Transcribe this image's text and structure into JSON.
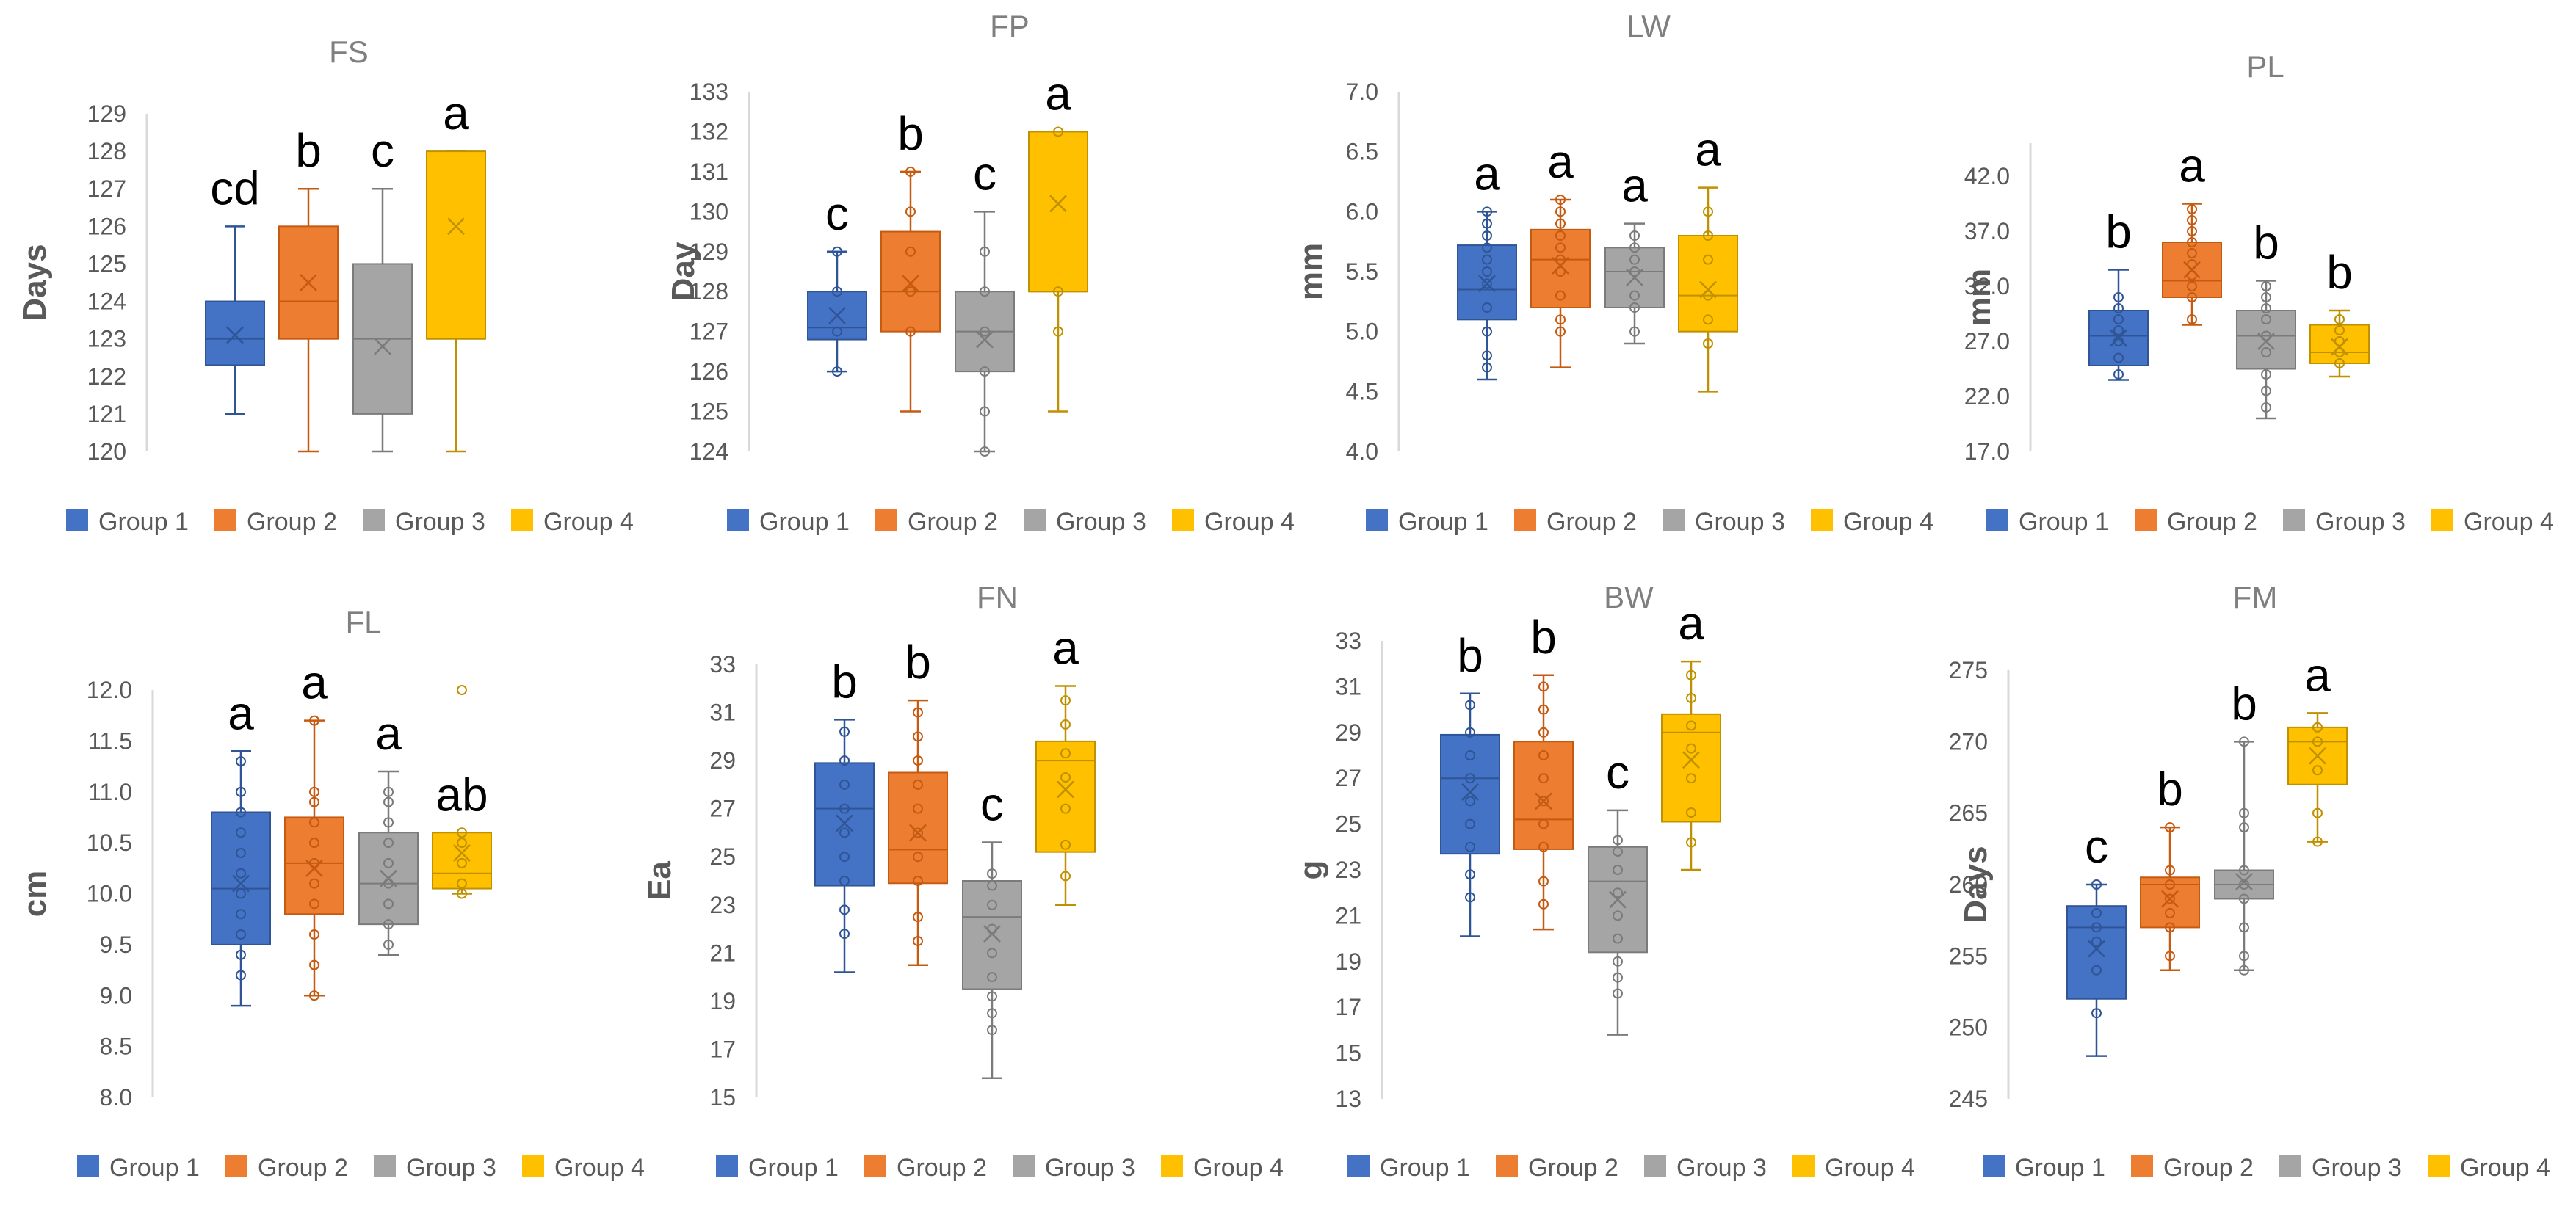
{
  "colors": {
    "group1": "#4472C4",
    "group1_dark": "#2F5597",
    "group2": "#ED7D31",
    "group2_dark": "#C55A11",
    "group3": "#A5A5A5",
    "group3_dark": "#7B7B7B",
    "group4": "#FFC000",
    "group4_dark": "#BF9000",
    "axis": "#D9D9D9",
    "tick_text": "#595959",
    "title_text": "#7F7F7F",
    "ylabel_text": "#595959"
  },
  "legend": [
    "Group 1",
    "Group 2",
    "Group 3",
    "Group 4"
  ],
  "chart_data": [
    {
      "type": "box",
      "title": "FS",
      "ylabel": "Days",
      "ylim": [
        120,
        129
      ],
      "ticks": [
        "120",
        "121",
        "122",
        "123",
        "124",
        "125",
        "126",
        "127",
        "128",
        "129"
      ],
      "series": [
        {
          "name": "Group 1",
          "min": 121,
          "q1": 122.3,
          "median": 123,
          "q3": 124,
          "max": 126,
          "mean": 123.1,
          "letter": "cd",
          "points": []
        },
        {
          "name": "Group 2",
          "min": 120,
          "q1": 123,
          "median": 124,
          "q3": 126,
          "max": 127,
          "mean": 124.5,
          "letter": "b",
          "points": []
        },
        {
          "name": "Group 3",
          "min": 120,
          "q1": 121,
          "median": 123,
          "q3": 125,
          "max": 127,
          "mean": 122.8,
          "letter": "c",
          "points": []
        },
        {
          "name": "Group 4",
          "min": 120,
          "q1": 123,
          "median": 123,
          "q3": 128,
          "max": 128,
          "mean": 126,
          "letter": "a",
          "points": []
        }
      ]
    },
    {
      "type": "box",
      "title": "FP",
      "ylabel": "Day",
      "ylim": [
        124,
        133
      ],
      "ticks": [
        "124",
        "125",
        "126",
        "127",
        "128",
        "129",
        "130",
        "131",
        "132",
        "133"
      ],
      "series": [
        {
          "name": "Group 1",
          "min": 126,
          "q1": 126.8,
          "median": 127.1,
          "q3": 128,
          "max": 129,
          "mean": 127.4,
          "letter": "c",
          "points": [
            126,
            127,
            128,
            129
          ]
        },
        {
          "name": "Group 2",
          "min": 125,
          "q1": 127,
          "median": 128,
          "q3": 129.5,
          "max": 131,
          "mean": 128.2,
          "letter": "b",
          "points": [
            127,
            128,
            129,
            130,
            131
          ]
        },
        {
          "name": "Group 3",
          "min": 124,
          "q1": 126,
          "median": 127,
          "q3": 128,
          "max": 130,
          "mean": 126.8,
          "letter": "c",
          "points": [
            124,
            125,
            126,
            127,
            128,
            129
          ]
        },
        {
          "name": "Group 4",
          "min": 125,
          "q1": 128,
          "median": 128,
          "q3": 132,
          "max": 132,
          "mean": 130.2,
          "letter": "a",
          "points": [
            127,
            128,
            132
          ]
        }
      ]
    },
    {
      "type": "box",
      "title": "LW",
      "ylabel": "mm",
      "ylim": [
        4.0,
        7.0
      ],
      "ticks": [
        "4.0",
        "4.5",
        "5.0",
        "5.5",
        "6.0",
        "6.5",
        "7.0"
      ],
      "series": [
        {
          "name": "Group 1",
          "min": 4.6,
          "q1": 5.1,
          "median": 5.35,
          "q3": 5.72,
          "max": 6.0,
          "mean": 5.4,
          "letter": "a",
          "points": [
            4.7,
            4.8,
            5.0,
            5.2,
            5.4,
            5.5,
            5.6,
            5.7,
            5.8,
            5.9,
            6.0
          ]
        },
        {
          "name": "Group 2",
          "min": 4.7,
          "q1": 5.2,
          "median": 5.6,
          "q3": 5.85,
          "max": 6.1,
          "mean": 5.55,
          "letter": "a",
          "points": [
            5.0,
            5.1,
            5.3,
            5.5,
            5.6,
            5.7,
            5.8,
            5.9,
            6.0,
            6.1
          ]
        },
        {
          "name": "Group 3",
          "min": 4.9,
          "q1": 5.2,
          "median": 5.5,
          "q3": 5.7,
          "max": 5.9,
          "mean": 5.45,
          "letter": "a",
          "points": [
            5.0,
            5.2,
            5.3,
            5.5,
            5.6,
            5.7,
            5.8
          ]
        },
        {
          "name": "Group 4",
          "min": 4.5,
          "q1": 5.0,
          "median": 5.3,
          "q3": 5.8,
          "max": 6.2,
          "mean": 5.35,
          "letter": "a",
          "points": [
            4.9,
            5.1,
            5.3,
            5.6,
            5.8,
            6.0
          ]
        }
      ]
    },
    {
      "type": "box",
      "title": "PL",
      "ylabel": "mm",
      "ylim": [
        17.0,
        45.0
      ],
      "ticks": [
        "17.0",
        "22.0",
        "27.0",
        "32.0",
        "37.0",
        "42.0"
      ],
      "series": [
        {
          "name": "Group 1",
          "min": 23.5,
          "q1": 24.8,
          "median": 27.5,
          "q3": 29.8,
          "max": 33.5,
          "mean": 27.3,
          "letter": "b",
          "points": [
            24.0,
            25.5,
            27.0,
            28.0,
            29.0,
            30.0,
            31.0
          ]
        },
        {
          "name": "Group 2",
          "min": 28.5,
          "q1": 31.0,
          "median": 32.5,
          "q3": 36.0,
          "max": 39.5,
          "mean": 33.5,
          "letter": "a",
          "points": [
            29.0,
            31.0,
            32.0,
            33.0,
            34.0,
            35.0,
            36.0,
            37.0,
            38.0,
            39.0
          ]
        },
        {
          "name": "Group 3",
          "min": 20.0,
          "q1": 24.5,
          "median": 27.5,
          "q3": 29.8,
          "max": 32.5,
          "mean": 27.0,
          "letter": "b",
          "points": [
            21.0,
            22.5,
            24.0,
            26.0,
            27.5,
            29.0,
            30.0,
            31.0,
            32.0
          ]
        },
        {
          "name": "Group 4",
          "min": 23.8,
          "q1": 25.0,
          "median": 26.0,
          "q3": 28.5,
          "max": 29.8,
          "mean": 26.5,
          "letter": "b",
          "points": [
            25.0,
            26.0,
            27.0,
            28.0,
            29.0
          ]
        }
      ]
    },
    {
      "type": "box",
      "title": "FL",
      "ylabel": "cm",
      "ylim": [
        8.0,
        12.0
      ],
      "ticks": [
        "8.0",
        "8.5",
        "9.0",
        "9.5",
        "10.0",
        "10.5",
        "11.0",
        "11.5",
        "12.0"
      ],
      "series": [
        {
          "name": "Group 1",
          "min": 8.9,
          "q1": 9.5,
          "median": 10.05,
          "q3": 10.8,
          "max": 11.4,
          "mean": 10.1,
          "letter": "a",
          "points": [
            9.2,
            9.4,
            9.6,
            9.8,
            10.0,
            10.2,
            10.4,
            10.6,
            10.8,
            11.0,
            11.3
          ]
        },
        {
          "name": "Group 2",
          "min": 9.0,
          "q1": 9.8,
          "median": 10.3,
          "q3": 10.75,
          "max": 11.7,
          "mean": 10.25,
          "letter": "a",
          "points": [
            9.0,
            9.3,
            9.6,
            9.9,
            10.1,
            10.3,
            10.5,
            10.7,
            10.9,
            11.0,
            11.7
          ]
        },
        {
          "name": "Group 3",
          "min": 9.4,
          "q1": 9.7,
          "median": 10.1,
          "q3": 10.6,
          "max": 11.2,
          "mean": 10.15,
          "letter": "a",
          "points": [
            9.5,
            9.7,
            9.9,
            10.1,
            10.3,
            10.5,
            10.7,
            10.9,
            11.0
          ]
        },
        {
          "name": "Group 4",
          "min": 10.0,
          "q1": 10.05,
          "median": 10.2,
          "q3": 10.6,
          "max": 10.6,
          "mean": 10.4,
          "letter": "ab",
          "points": [
            10.0,
            10.1,
            10.3,
            10.5,
            10.6,
            12.0
          ]
        }
      ]
    },
    {
      "type": "box",
      "title": "FN",
      "ylabel": "Ea",
      "ylim": [
        15,
        33
      ],
      "ticks": [
        "15",
        "17",
        "19",
        "21",
        "23",
        "25",
        "27",
        "29",
        "31",
        "33"
      ],
      "series": [
        {
          "name": "Group 1",
          "min": 20.2,
          "q1": 23.8,
          "median": 27.0,
          "q3": 28.9,
          "max": 30.7,
          "mean": 26.4,
          "letter": "b",
          "points": [
            21.8,
            22.8,
            24.0,
            25.0,
            26.0,
            27.0,
            28.0,
            29.0,
            30.2
          ]
        },
        {
          "name": "Group 2",
          "min": 20.5,
          "q1": 23.9,
          "median": 25.3,
          "q3": 28.5,
          "max": 31.5,
          "mean": 26.0,
          "letter": "b",
          "points": [
            21.5,
            22.5,
            24.0,
            25.0,
            26.0,
            27.0,
            28.0,
            29.0,
            30.0,
            31.0
          ]
        },
        {
          "name": "Group 3",
          "min": 15.8,
          "q1": 19.5,
          "median": 22.5,
          "q3": 24.0,
          "max": 25.6,
          "mean": 21.8,
          "letter": "c",
          "points": [
            17.8,
            18.5,
            19.2,
            20.0,
            21.0,
            22.0,
            23.0,
            23.8,
            24.3
          ]
        },
        {
          "name": "Group 4",
          "min": 23.0,
          "q1": 25.2,
          "median": 29.0,
          "q3": 29.8,
          "max": 32.1,
          "mean": 27.8,
          "letter": "a",
          "points": [
            24.2,
            25.5,
            27.0,
            28.3,
            29.3,
            30.5,
            31.5
          ]
        }
      ]
    },
    {
      "type": "box",
      "title": "BW",
      "ylabel": "g",
      "ylim": [
        13,
        33
      ],
      "ticks": [
        "13",
        "15",
        "17",
        "19",
        "21",
        "23",
        "25",
        "27",
        "29",
        "31",
        "33"
      ],
      "series": [
        {
          "name": "Group 1",
          "min": 20.1,
          "q1": 23.7,
          "median": 27.0,
          "q3": 28.9,
          "max": 30.7,
          "mean": 26.4,
          "letter": "b",
          "points": [
            21.8,
            22.8,
            24.0,
            25.0,
            26.0,
            27.0,
            28.0,
            29.0,
            30.2
          ]
        },
        {
          "name": "Group 2",
          "min": 20.4,
          "q1": 23.9,
          "median": 25.2,
          "q3": 28.6,
          "max": 31.5,
          "mean": 26.0,
          "letter": "b",
          "points": [
            21.5,
            22.5,
            24.0,
            25.0,
            26.0,
            27.0,
            28.0,
            29.0,
            30.0,
            31.0
          ]
        },
        {
          "name": "Group 3",
          "min": 15.8,
          "q1": 19.4,
          "median": 22.5,
          "q3": 24.0,
          "max": 25.6,
          "mean": 21.7,
          "letter": "c",
          "points": [
            17.6,
            18.3,
            19.0,
            20.0,
            21.0,
            22.0,
            23.0,
            23.8,
            24.3
          ]
        },
        {
          "name": "Group 4",
          "min": 23.0,
          "q1": 25.1,
          "median": 29.0,
          "q3": 29.8,
          "max": 32.1,
          "mean": 27.8,
          "letter": "a",
          "points": [
            24.2,
            25.5,
            27.0,
            28.3,
            29.3,
            30.5,
            31.5
          ]
        }
      ]
    },
    {
      "type": "box",
      "title": "FM",
      "ylabel": "Days",
      "ylim": [
        245,
        275
      ],
      "ticks": [
        "245",
        "250",
        "255",
        "260",
        "265",
        "270",
        "275"
      ],
      "series": [
        {
          "name": "Group 1",
          "min": 248,
          "q1": 252,
          "median": 257,
          "q3": 258.5,
          "max": 260,
          "mean": 255.5,
          "letter": "c",
          "points": [
            251,
            254,
            256,
            257,
            258,
            260
          ]
        },
        {
          "name": "Group 2",
          "min": 254,
          "q1": 257,
          "median": 260,
          "q3": 260.5,
          "max": 264,
          "mean": 259,
          "letter": "b",
          "points": [
            255,
            257,
            258,
            259,
            260,
            261,
            264
          ]
        },
        {
          "name": "Group 3",
          "min": 254,
          "q1": 259,
          "median": 260,
          "q3": 261,
          "max": 270,
          "mean": 260.2,
          "letter": "b",
          "points": [
            254,
            255,
            257,
            259,
            260,
            261,
            264,
            265,
            270
          ]
        },
        {
          "name": "Group 4",
          "min": 263,
          "q1": 267,
          "median": 270,
          "q3": 271,
          "max": 272,
          "mean": 269,
          "letter": "a",
          "points": [
            263,
            265,
            268,
            270,
            271
          ]
        }
      ]
    }
  ]
}
